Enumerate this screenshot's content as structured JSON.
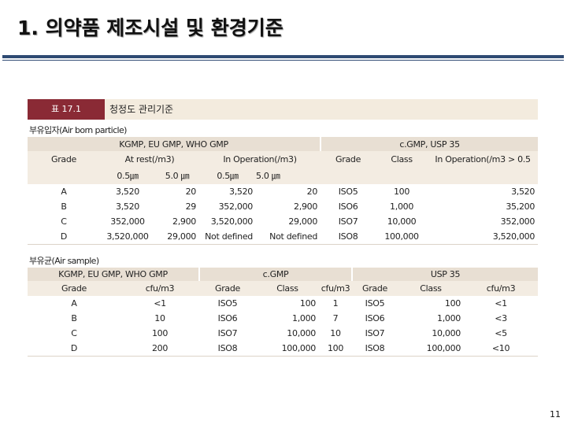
{
  "title": "1. 의약품 제조시설 및 환경기준",
  "table_label": "표 17.1",
  "table_caption": "청정도 관리기준",
  "section1": {
    "title": "부유입자(Air born particle)",
    "group_left": "KGMP, EU GMP, WHO GMP",
    "group_right": "c.GMP, USP 35",
    "col_grade": "Grade",
    "col_at_rest": "At rest(/m3)",
    "col_in_operation": "In Operation(/m3)",
    "col_grade2": "Grade",
    "col_class": "Class",
    "col_in_op_right": "In Operation(/m3 > 0.5",
    "size_a": "0.5㎛",
    "size_b": "5.0 ㎛",
    "size_c": "0.5㎛",
    "size_d": "5.0 ㎛",
    "rows": [
      {
        "grade": "A",
        "rest05": "3,520",
        "rest5": "20",
        "op05": "3,520",
        "op5": "20",
        "grade2": "ISO5",
        "cls": "100",
        "inop": "3,520"
      },
      {
        "grade": "B",
        "rest05": "3,520",
        "rest5": "29",
        "op05": "352,000",
        "op5": "2,900",
        "grade2": "ISO6",
        "cls": "1,000",
        "inop": "35,200"
      },
      {
        "grade": "C",
        "rest05": "352,000",
        "rest5": "2,900",
        "op05": "3,520,000",
        "op5": "29,000",
        "grade2": "ISO7",
        "cls": "10,000",
        "inop": "352,000"
      },
      {
        "grade": "D",
        "rest05": "3,520,000",
        "rest5": "29,000",
        "op05": "Not defined",
        "op5": "Not defined",
        "grade2": "ISO8",
        "cls": "100,000",
        "inop": "3,520,000"
      }
    ]
  },
  "section2": {
    "title": "부유균(Air sample)",
    "group_left": "KGMP, EU GMP, WHO GMP",
    "group_mid": "c.GMP",
    "group_right": "USP 35",
    "col_grade": "Grade",
    "col_cfu": "cfu/m3",
    "col_grade2": "Grade",
    "col_class": "Class",
    "col_cfu2": "cfu/m3",
    "col_grade3": "Grade",
    "col_class3": "Class",
    "col_cfu3": "cfu/m3",
    "rows": [
      {
        "grade": "A",
        "cfu": "<1",
        "grade2": "ISO5",
        "cls": "100",
        "cfu2": "1",
        "grade3": "ISO5",
        "cls3": "100",
        "cfu3": "<1"
      },
      {
        "grade": "B",
        "cfu": "10",
        "grade2": "ISO6",
        "cls": "1,000",
        "cfu2": "7",
        "grade3": "ISO6",
        "cls3": "1,000",
        "cfu3": "<3"
      },
      {
        "grade": "C",
        "cfu": "100",
        "grade2": "ISO7",
        "cls": "10,000",
        "cfu2": "10",
        "grade3": "ISO7",
        "cls3": "10,000",
        "cfu3": "<5"
      },
      {
        "grade": "D",
        "cfu": "200",
        "grade2": "ISO8",
        "cls": "100,000",
        "cfu2": "100",
        "grade3": "ISO8",
        "cls3": "100,000",
        "cfu3": "<10"
      }
    ]
  },
  "page_number": "11",
  "colors": {
    "title_rule": "#2f4a73",
    "label_bg": "#8a2a35",
    "header_bg": "#e8dfd3",
    "caption_bg": "#f3ebde"
  }
}
